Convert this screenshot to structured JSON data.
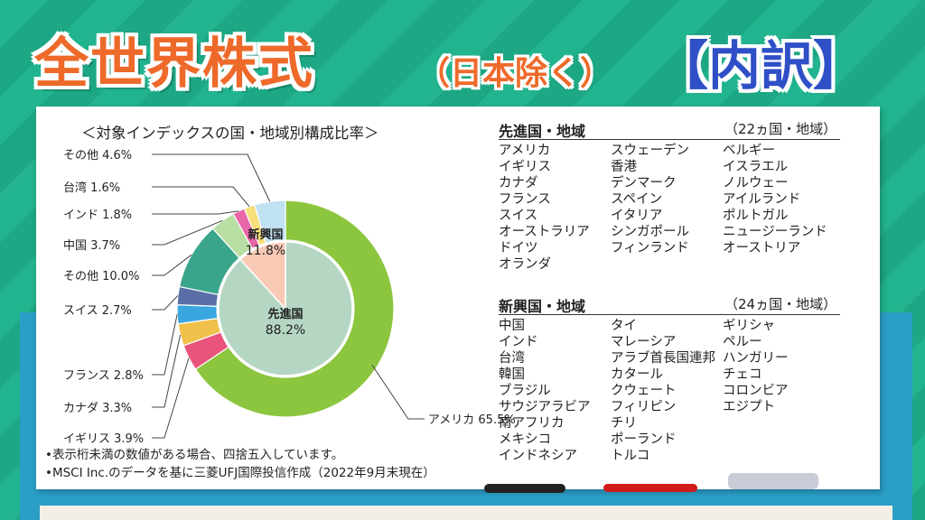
{
  "header": {
    "title": "全世界株式",
    "subtitle": "（日本除く）",
    "badge": "【内訳】"
  },
  "colors": {
    "background": "#1fae8a",
    "title": "#ee6a2a",
    "badge": "#2f4fc7"
  },
  "chart_data": {
    "type": "pie",
    "title": "＜対象インデックスの国・地域別構成比率＞",
    "outer_ring": [
      {
        "name": "アメリカ",
        "value": 65.5,
        "label": "アメリカ 65.5%",
        "color": "#8cc63f"
      },
      {
        "name": "イギリス",
        "value": 3.9,
        "label": "イギリス 3.9%",
        "color": "#e8547b"
      },
      {
        "name": "カナダ",
        "value": 3.3,
        "label": "カナダ 3.3%",
        "color": "#f0c04a"
      },
      {
        "name": "フランス",
        "value": 2.8,
        "label": "フランス 2.8%",
        "color": "#3aa6e0"
      },
      {
        "name": "スイス",
        "value": 2.7,
        "label": "スイス 2.7%",
        "color": "#5a6fa8"
      },
      {
        "name": "その他",
        "value": 10.0,
        "label": "その他 10.0%",
        "color": "#3aa58a"
      },
      {
        "name": "中国",
        "value": 3.7,
        "label": "中国 3.7%",
        "color": "#b7dfa3"
      },
      {
        "name": "インド",
        "value": 1.8,
        "label": "インド 1.8%",
        "color": "#e767a8"
      },
      {
        "name": "台湾",
        "value": 1.6,
        "label": "台湾 1.6%",
        "color": "#f7e07a"
      },
      {
        "name": "その他",
        "value": 4.6,
        "label": "その他 4.6%",
        "color": "#bfe1f2"
      }
    ],
    "inner": [
      {
        "name": "先進国",
        "value": 88.2,
        "label_name": "先進国",
        "label_value": "88.2%",
        "color": "#b5d6c3"
      },
      {
        "name": "新興国",
        "value": 11.8,
        "label_name": "新興国",
        "label_value": "11.8%",
        "color": "#f8c9b4"
      }
    ]
  },
  "notes": [
    "•表示桁未満の数値がある場合、四捨五入しています。",
    "•MSCI Inc.のデータを基に三菱UFJ国際投信作成（2022年9月末現在）"
  ],
  "developed": {
    "heading": "先進国・地域",
    "count": "（22ヵ国・地域）",
    "col1": [
      "アメリカ",
      "イギリス",
      "カナダ",
      "フランス",
      "スイス",
      "オーストラリア",
      "ドイツ",
      "オランダ"
    ],
    "col2": [
      "スウェーデン",
      "香港",
      "デンマーク",
      "スペイン",
      "イタリア",
      "シンガポール",
      "フィンランド"
    ],
    "col3": [
      "ベルギー",
      "イスラエル",
      "ノルウェー",
      "アイルランド",
      "ポルトガル",
      "ニュージーランド",
      "オーストリア"
    ]
  },
  "emerging": {
    "heading": "新興国・地域",
    "count": "（24ヵ国・地域）",
    "col1": [
      "中国",
      "インド",
      "台湾",
      "韓国",
      "ブラジル",
      "サウジアラビア",
      "南アフリカ",
      "メキシコ",
      "インドネシア"
    ],
    "col2": [
      "タイ",
      "マレーシア",
      "アラブ首長国連邦",
      "カタール",
      "クウェート",
      "フィリピン",
      "チリ",
      "ポーランド",
      "トルコ"
    ],
    "col3": [
      "ギリシャ",
      "ペルー",
      "ハンガリー",
      "チェコ",
      "コロンビア",
      "エジプト"
    ]
  }
}
